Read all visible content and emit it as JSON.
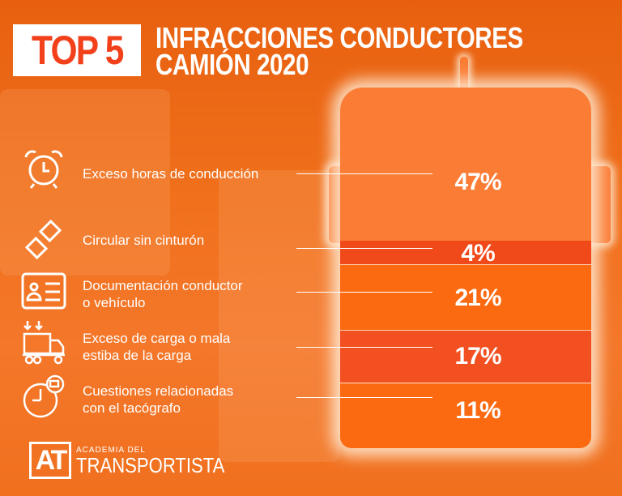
{
  "header": {
    "badge": "TOP 5",
    "title_line1": "INFRACCIONES CONDUCTORES",
    "title_line2": "CAMIÓN 2020"
  },
  "colors": {
    "background": "#f0701c",
    "badge_text": "#f2401a",
    "band_light": "#fb7d35",
    "band_orange": "#fb6a10",
    "band_red": "#f04a1a"
  },
  "chart_data": {
    "type": "bar",
    "title": "INFRACCIONES CONDUCTORES CAMIÓN 2020",
    "categories": [
      "Exceso horas de conducción",
      "Circular sin cinturón",
      "Documentación conductor o vehículo",
      "Exceso de carga o mala estiba de la carga",
      "Cuestiones relacionadas con el tacógrafo"
    ],
    "values": [
      47,
      4,
      21,
      17,
      11
    ],
    "labels": [
      "47%",
      "4%",
      "21%",
      "17%",
      "11%"
    ],
    "unit": "%"
  },
  "items": [
    {
      "icon": "alarm-clock-icon",
      "line1": "Exceso horas de conducción",
      "line2": "",
      "value": "47%"
    },
    {
      "icon": "seatbelt-icon",
      "line1": "Circular sin cinturón",
      "line2": "",
      "value": "4%"
    },
    {
      "icon": "id-card-icon",
      "line1": "Documentación conductor",
      "line2": "o vehículo",
      "value": "21%"
    },
    {
      "icon": "loaded-truck-icon",
      "line1": "Exceso de carga o mala",
      "line2": "estiba de la carga",
      "value": "17%"
    },
    {
      "icon": "tachograph-icon",
      "line1": "Cuestiones relacionadas",
      "line2": "con el tacógrafo",
      "value": "11%"
    }
  ],
  "logo": {
    "mark": "AT",
    "small": "ACADEMIA DEL",
    "big": "TRANSPORTISTA"
  }
}
